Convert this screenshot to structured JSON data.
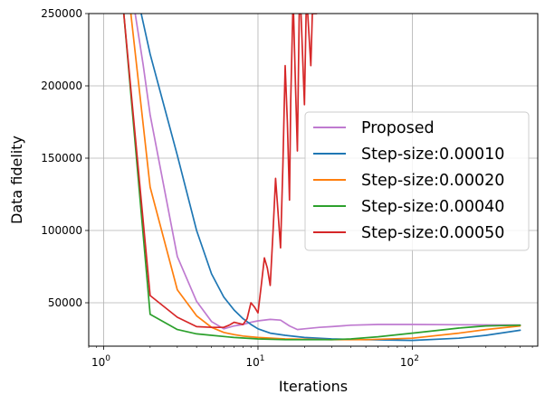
{
  "chart_data": {
    "type": "line",
    "title": "",
    "xlabel": "Iterations",
    "ylabel": "Data fidelity",
    "xscale": "log",
    "xlim": [
      0.8,
      650
    ],
    "ylim": [
      20000,
      250000
    ],
    "grid": true,
    "legend_position": "center-right",
    "x_ticks": [
      {
        "value": 1,
        "base": "10",
        "exp": "0"
      },
      {
        "value": 10,
        "base": "10",
        "exp": "1"
      },
      {
        "value": 100,
        "base": "10",
        "exp": "2"
      }
    ],
    "y_ticks": [
      {
        "value": 50000,
        "label": "50000"
      },
      {
        "value": 100000,
        "label": "100000"
      },
      {
        "value": 150000,
        "label": "150000"
      },
      {
        "value": 200000,
        "label": "200000"
      },
      {
        "value": 250000,
        "label": "250000"
      }
    ],
    "series": [
      {
        "name": "Proposed",
        "color": "#bf7ad0",
        "x": [
          1.6,
          1.8,
          2,
          3,
          4,
          5,
          6,
          7,
          8,
          9,
          10,
          12,
          14,
          16,
          18,
          20,
          25,
          30,
          40,
          60,
          100,
          200,
          300,
          500
        ],
        "y": [
          250000,
          215000,
          180000,
          82000,
          51000,
          37000,
          32000,
          34000,
          35000,
          36500,
          37500,
          38500,
          38000,
          34000,
          31500,
          32000,
          33000,
          33500,
          34500,
          35000,
          35000,
          34800,
          34700,
          34600
        ]
      },
      {
        "name": "Step-size:0.00010",
        "color": "#1f77b4",
        "x": [
          1.75,
          2,
          3,
          4,
          5,
          6,
          7,
          8,
          9,
          10,
          12,
          15,
          20,
          30,
          50,
          100,
          200,
          300,
          500
        ],
        "y": [
          250000,
          222000,
          152000,
          100000,
          70000,
          54000,
          45000,
          39000,
          35000,
          32000,
          29000,
          27500,
          26000,
          25000,
          24500,
          24000,
          25500,
          27500,
          31000
        ]
      },
      {
        "name": "Step-size:0.00020",
        "color": "#ff7f0e",
        "x": [
          1.5,
          2,
          3,
          4,
          5,
          6,
          7,
          8,
          10,
          15,
          20,
          30,
          50,
          100,
          200,
          300,
          500
        ],
        "y": [
          250000,
          130000,
          59000,
          41000,
          33000,
          29500,
          28000,
          27000,
          26000,
          25000,
          24800,
          24500,
          24500,
          25500,
          29000,
          31500,
          34000
        ]
      },
      {
        "name": "Step-size:0.00040",
        "color": "#2ca02c",
        "x": [
          1.35,
          2,
          3,
          4,
          5,
          7,
          10,
          15,
          20,
          30,
          40,
          60,
          100,
          200,
          300,
          500
        ],
        "y": [
          250000,
          42000,
          31500,
          28500,
          27500,
          26000,
          25000,
          24500,
          24500,
          24500,
          25000,
          26500,
          29000,
          32500,
          34000,
          34500
        ]
      },
      {
        "name": "Step-size:0.00050",
        "color": "#d62728",
        "x": [
          1.35,
          2,
          3,
          4,
          5,
          6,
          6.5,
          7,
          8,
          8.5,
          9,
          9.5,
          10,
          10.5,
          11,
          11.5,
          12,
          12.5,
          13,
          13.5,
          14,
          14.5,
          15,
          15.5,
          16,
          16.3,
          16.8,
          17,
          17.5,
          18,
          18.5,
          19,
          20,
          20.5,
          21,
          22,
          22.5,
          23,
          24
        ],
        "y": [
          250000,
          55000,
          40000,
          33500,
          33000,
          33000,
          34500,
          36500,
          35000,
          39000,
          50000,
          47000,
          43000,
          62000,
          81000,
          74000,
          62000,
          98000,
          136000,
          112000,
          88000,
          145000,
          214000,
          175000,
          121000,
          190000,
          250000,
          250000,
          200000,
          155000,
          250000,
          250000,
          187000,
          250000,
          250000,
          214000,
          250000,
          250000,
          250000
        ]
      }
    ]
  }
}
